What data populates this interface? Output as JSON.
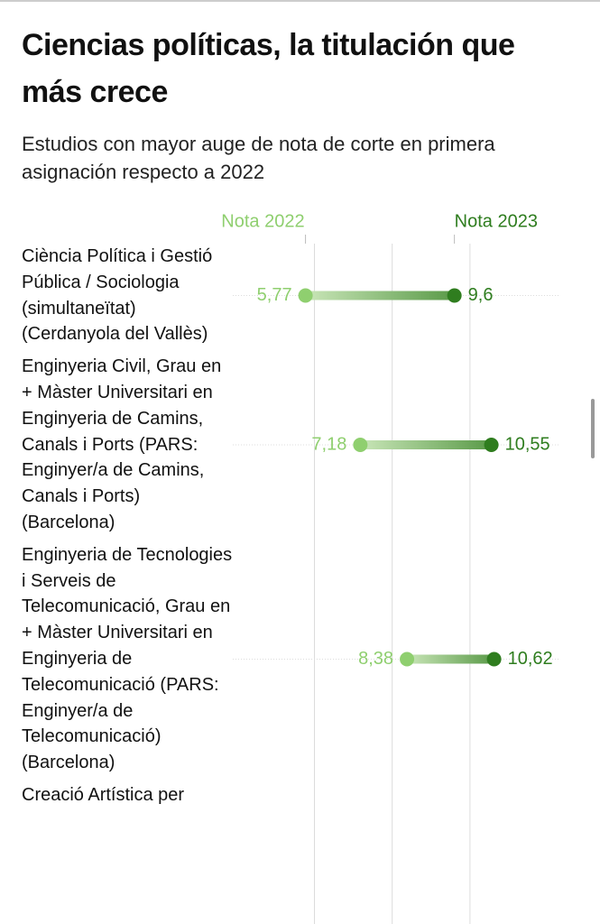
{
  "chart_data": {
    "type": "dumbbell",
    "title": "Ciencias políticas, la titulación que más crece",
    "subtitle": "Estudios con mayor auge de nota de corte en primera asignación respecto a 2022",
    "categories": [
      "Ciència Política i Gestió Pública / Sociologia (simultaneïtat) (Cerdanyola del Vallès)",
      "Enginyeria Civil, Grau en + Màster Universitari en Enginyeria de Camins, Canals i Ports (PARS: Enginyer/a de Camins, Canals i Ports) (Barcelona)",
      "Enginyeria de Tecnologies i Serveis de Telecomunicació, Grau en + Màster Universitari en Enginyeria de Telecomunicació (PARS: Enginyer/a de Telecomunicació) (Barcelona)",
      "Creació Artística per"
    ],
    "series": [
      {
        "name": "Nota 2022",
        "color": "#8fcf6f",
        "values": [
          5.77,
          7.18,
          8.38,
          null
        ],
        "value_labels": [
          "5,77",
          "7,18",
          "8,38",
          null
        ]
      },
      {
        "name": "Nota 2023",
        "color": "#2f7d1f",
        "values": [
          9.6,
          10.55,
          10.62,
          null
        ],
        "value_labels": [
          "9,6",
          "10,55",
          "10,62",
          null
        ]
      }
    ],
    "xlim": [
      3.9,
      12.3
    ],
    "xticks": [
      6,
      8,
      10
    ],
    "grid": true
  }
}
